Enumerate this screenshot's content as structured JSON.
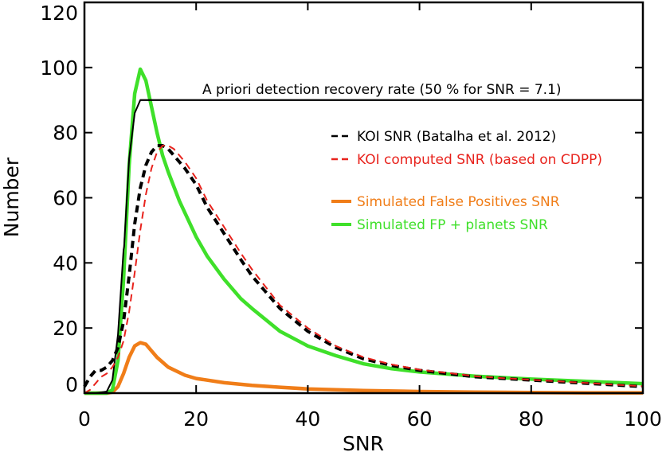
{
  "chart_data": {
    "type": "line",
    "title": "",
    "xlabel": "SNR",
    "ylabel": "Number",
    "xlim": [
      0,
      100
    ],
    "ylim": [
      0,
      120
    ],
    "xticks": [
      0,
      20,
      40,
      60,
      80,
      100
    ],
    "yticks": [
      0,
      20,
      40,
      60,
      80,
      100,
      120
    ],
    "grid": false,
    "legend_position": "right",
    "annotation": "A priori detection recovery rate (50 % for SNR = 7.1)",
    "series": [
      {
        "name": "A priori detection recovery rate",
        "style": "solid",
        "color": "#000000",
        "x": [
          0,
          2,
          4,
          5,
          6,
          7,
          7.1,
          8,
          9,
          10,
          100
        ],
        "y": [
          0,
          0,
          0.5,
          4,
          18,
          44,
          45,
          72,
          86,
          90,
          90
        ]
      },
      {
        "name": "KOI SNR (Batalha et al. 2012)",
        "style": "dashed",
        "color": "#000000",
        "x": [
          0,
          1,
          2,
          3,
          4,
          5,
          6,
          7,
          8,
          9,
          10,
          11,
          12,
          13,
          14,
          15,
          16,
          18,
          20,
          22,
          25,
          28,
          30,
          35,
          40,
          45,
          50,
          55,
          60,
          65,
          70,
          75,
          80,
          85,
          90,
          95,
          100
        ],
        "y": [
          2,
          5,
          7,
          7,
          8,
          10,
          14,
          22,
          36,
          52,
          63,
          70,
          74,
          76,
          76,
          75,
          73,
          69,
          64,
          57,
          49,
          41,
          36,
          26,
          19,
          14,
          10.5,
          8.5,
          7,
          6,
          5,
          4.5,
          4,
          3.5,
          3,
          2.5,
          2
        ]
      },
      {
        "name": "KOI computed SNR (based on CDPP)",
        "style": "dashed",
        "color": "#e8231d",
        "x": [
          0,
          1,
          2,
          3,
          4,
          5,
          6,
          7,
          8,
          9,
          10,
          11,
          12,
          13,
          14,
          15,
          16,
          18,
          20,
          22,
          25,
          28,
          30,
          35,
          40,
          45,
          50,
          55,
          60,
          65,
          70,
          75,
          80,
          85,
          90,
          95,
          100
        ],
        "y": [
          0,
          1,
          3,
          5,
          6,
          8,
          11,
          16,
          25,
          37,
          50,
          61,
          69,
          74,
          76,
          76,
          75,
          71,
          66,
          59,
          51,
          43,
          38,
          27,
          20,
          14.5,
          11,
          8.8,
          7.2,
          6.2,
          5.2,
          4.6,
          4.1,
          3.6,
          3.1,
          2.6,
          2.1
        ]
      },
      {
        "name": "Simulated False Positives SNR",
        "style": "solid",
        "color": "#f07d18",
        "x": [
          0,
          4,
          5,
          6,
          7,
          8,
          9,
          10,
          11,
          12,
          13,
          15,
          18,
          20,
          25,
          30,
          35,
          40,
          50,
          60,
          70,
          80,
          90,
          100
        ],
        "y": [
          0,
          0,
          0.3,
          2,
          6,
          11,
          14.5,
          15.5,
          15,
          13,
          11,
          8,
          5.5,
          4.5,
          3.2,
          2.4,
          1.8,
          1.3,
          0.8,
          0.5,
          0.3,
          0.2,
          0.1,
          0.1
        ]
      },
      {
        "name": "Simulated FP + planets SNR",
        "style": "solid",
        "color": "#3fe02a",
        "x": [
          0,
          4,
          5,
          6,
          7,
          8,
          9,
          10,
          11,
          12,
          13,
          14,
          15,
          17,
          20,
          22,
          25,
          28,
          30,
          35,
          40,
          45,
          50,
          55,
          60,
          70,
          80,
          90,
          100
        ],
        "y": [
          0,
          0,
          1,
          10,
          35,
          70,
          92,
          99.5,
          96,
          88,
          80,
          73,
          68,
          59,
          48,
          42,
          35,
          29,
          26,
          19,
          14.5,
          11.5,
          9,
          7.5,
          6.5,
          5.2,
          4.3,
          3.6,
          2.9
        ]
      }
    ]
  }
}
